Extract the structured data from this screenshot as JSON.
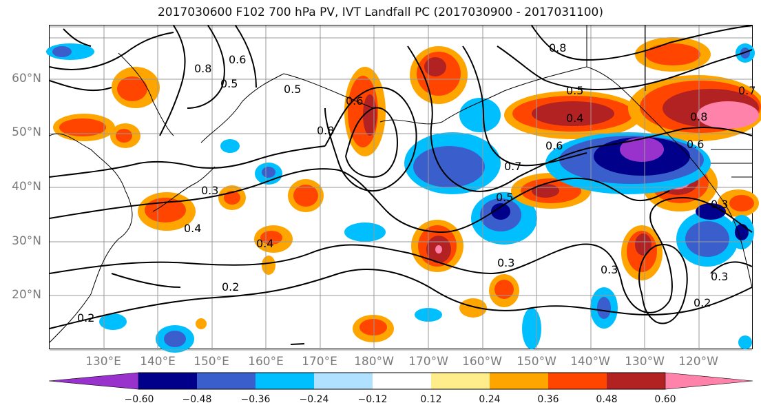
{
  "title": "2017030600 F102 700 hPa PV, IVT Landfall PC (2017030900 - 2017031100)",
  "lat_labels": [
    "60°N",
    "50°N",
    "40°N",
    "30°N",
    "20°N"
  ],
  "lon_labels": [
    "130°E",
    "140°E",
    "150°E",
    "160°E",
    "170°E",
    "180°W",
    "170°W",
    "160°W",
    "150°W",
    "140°W",
    "130°W",
    "120°W"
  ],
  "contour_labels": [
    "0.8",
    "0.6",
    "0.5",
    "0.5",
    "0.8",
    "0.6",
    "0.8",
    "0.5",
    "0.4",
    "0.6",
    "0.7",
    "0.8",
    "0.6",
    "0.3",
    "0.4",
    "0.4",
    "0.2",
    "0.3",
    "0.5",
    "0.3",
    "0.3",
    "0.2",
    "0.2",
    "0.7",
    "0.3"
  ],
  "colorbar": {
    "ticks": [
      "−0.60",
      "−0.48",
      "−0.36",
      "−0.24",
      "−0.12",
      "0.12",
      "0.24",
      "0.36",
      "0.48",
      "0.60"
    ],
    "colors": [
      "#9932cc",
      "#00008b",
      "#3a5fcd",
      "#00bfff",
      "#b0e2ff",
      "#ffffff",
      "#ffec8b",
      "#ffa500",
      "#ff4500",
      "#b22222",
      "#ff82ab"
    ]
  },
  "colors": {
    "neg_strong": "#9932cc",
    "neg_dark": "#00008b",
    "neg_mid": "#3a5fcd",
    "neg_light": "#00bfff",
    "neg_pale": "#b0e2ff",
    "pos_pale": "#ffec8b",
    "pos_light": "#ffa500",
    "pos_mid": "#ff4500",
    "pos_dark": "#b22222",
    "pos_strong": "#ff82ab"
  }
}
